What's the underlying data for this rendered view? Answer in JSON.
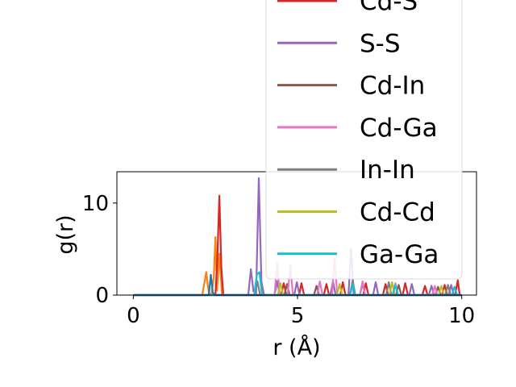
{
  "chart_data": {
    "type": "line",
    "xlabel": "r (Å)",
    "ylabel": "g(r)",
    "xlim": [
      -0.5,
      10.45
    ],
    "ylim": [
      0,
      13.4
    ],
    "xticks": [
      0,
      5,
      10
    ],
    "xtick_labels": [
      "0",
      "5",
      "10"
    ],
    "yticks": [
      0,
      10
    ],
    "ytick_labels": [
      "0",
      "10"
    ],
    "grid": false,
    "legend_position": "upper-right (overflowing top edge)",
    "legend_entries_visible": [
      "Cd-S",
      "S-S",
      "Cd-In",
      "Cd-Ga",
      "In-In",
      "Cd-Cd",
      "Ga-Ga"
    ],
    "series": [
      {
        "name": "",
        "color": "#ff7f0e",
        "x": [
          0,
          2.1,
          2.22,
          2.3,
          2.38,
          2.45,
          2.5,
          2.55,
          2.62,
          2.7,
          2.8,
          10
        ],
        "y": [
          0,
          0,
          2.5,
          0.2,
          0,
          2,
          6.3,
          0.5,
          4.5,
          0,
          0,
          0
        ]
      },
      {
        "name": "Cd-S",
        "color": "#d62728",
        "x": [
          0,
          2.5,
          2.56,
          2.62,
          2.68,
          2.74,
          4.5,
          4.58,
          4.66,
          5.05,
          5.12,
          5.2,
          5.8,
          5.88,
          5.96,
          6.3,
          6.38,
          6.46,
          7.0,
          7.08,
          7.16,
          7.6,
          7.68,
          7.76,
          8.2,
          8.28,
          8.36,
          8.8,
          8.88,
          8.96,
          9.4,
          9.48,
          9.56,
          9.8,
          9.88,
          9.94
        ],
        "y": [
          0,
          0,
          4,
          10.8,
          3,
          0,
          0,
          1.3,
          0,
          0,
          1.3,
          0,
          0,
          1.2,
          0,
          0,
          1.4,
          0,
          0,
          1.3,
          0,
          0,
          1.2,
          0,
          0,
          1.3,
          0,
          0,
          1.0,
          0,
          0,
          1.1,
          0,
          0,
          1.6,
          0
        ]
      },
      {
        "name": "S-S",
        "color": "#9467bd",
        "x": [
          0,
          3.5,
          3.58,
          3.66,
          3.74,
          3.82,
          3.9,
          3.98,
          4.3,
          4.38,
          4.46,
          4.9,
          4.98,
          5.06,
          6.0,
          6.08,
          6.16,
          6.55,
          6.63,
          6.71,
          7.3,
          7.38,
          7.46,
          8.4,
          8.48,
          8.56,
          9.0,
          9.08,
          9.16,
          9.6,
          9.68,
          9.76,
          10
        ],
        "y": [
          0,
          0,
          2.8,
          0.4,
          0.2,
          12.7,
          1.5,
          0,
          0,
          1.5,
          0,
          0,
          1.4,
          0,
          0,
          1.5,
          0,
          0,
          5.0,
          0,
          0,
          1.4,
          0,
          0,
          1.2,
          0,
          0,
          1.0,
          0,
          0,
          1.1,
          0,
          0
        ]
      },
      {
        "name": "Cd-In",
        "color": "#8c564b",
        "x": [
          0,
          4.6,
          4.68,
          4.76,
          5.5,
          5.58,
          5.66,
          6.9,
          6.98,
          7.06,
          8.0,
          8.08,
          8.16,
          9.2,
          9.28,
          9.36,
          10
        ],
        "y": [
          0,
          0,
          1.2,
          0,
          0,
          1.0,
          0,
          0,
          1.3,
          0,
          0,
          1.1,
          0,
          0,
          0.9,
          0,
          0
        ]
      },
      {
        "name": "Cd-Ga",
        "color": "#e377c2",
        "x": [
          0,
          4.3,
          4.38,
          4.46,
          4.7,
          4.78,
          4.86,
          5.6,
          5.68,
          5.76,
          6.05,
          6.13,
          6.21,
          6.9,
          6.98,
          7.06,
          7.9,
          7.98,
          8.06,
          9.1,
          9.18,
          9.26,
          10
        ],
        "y": [
          0,
          0,
          3.5,
          0,
          0,
          3.3,
          0,
          0,
          1.5,
          0,
          0,
          4.0,
          0,
          0,
          1.5,
          0,
          0,
          1.3,
          0,
          0,
          1.0,
          0,
          0
        ]
      },
      {
        "name": "In-In",
        "color": "#7f7f7f",
        "x": [
          0,
          3.7,
          3.78,
          3.86,
          6.6,
          6.68,
          6.76,
          7.7,
          7.78,
          7.86,
          9.5,
          9.58,
          9.66,
          10
        ],
        "y": [
          0,
          0,
          1.5,
          0,
          0,
          1.6,
          0,
          0,
          1.4,
          0,
          0,
          1.1,
          0,
          0
        ]
      },
      {
        "name": "Cd-Cd",
        "color": "#bcbd22",
        "x": [
          0,
          4.4,
          4.48,
          4.56,
          6.2,
          6.28,
          6.36,
          7.8,
          7.88,
          7.96,
          9.3,
          9.38,
          9.46,
          10
        ],
        "y": [
          0,
          0,
          1.3,
          0,
          0,
          1.2,
          0,
          0,
          1.4,
          0,
          0,
          1.0,
          0,
          0
        ]
      },
      {
        "name": "Ga-Ga",
        "color": "#17becf",
        "x": [
          0,
          3.68,
          3.76,
          3.84,
          3.92,
          6.6,
          6.68,
          6.76,
          7.9,
          7.98,
          8.06,
          9.7,
          9.78,
          9.86,
          10
        ],
        "y": [
          0,
          0,
          2.2,
          2.5,
          0,
          0,
          1.2,
          0,
          0,
          1.1,
          0,
          0,
          0.9,
          0,
          0
        ]
      },
      {
        "name": "",
        "color": "#1f77b4",
        "x": [
          0,
          2.3,
          2.36,
          2.42,
          2.48,
          10
        ],
        "y": [
          0,
          0,
          2.2,
          0.3,
          0,
          0
        ]
      }
    ]
  }
}
